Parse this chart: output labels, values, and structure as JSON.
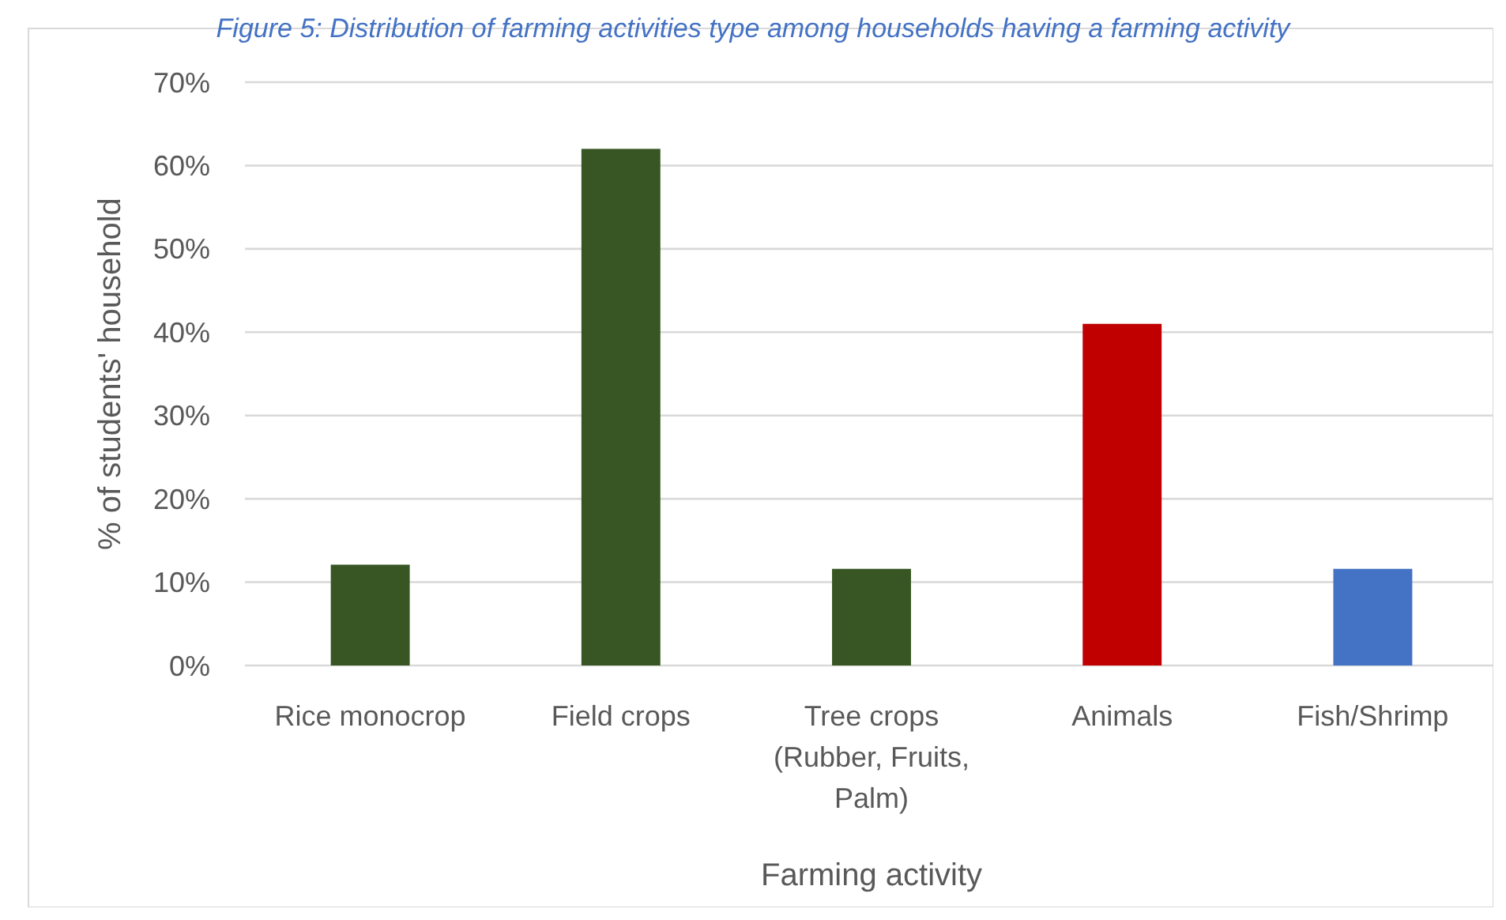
{
  "chart_data": {
    "type": "bar",
    "title": "Figure 5: Distribution of farming activities type among households having a farming activity",
    "categories": [
      "Rice monocrop",
      "Field crops",
      "Tree crops (Rubber, Fruits, Palm)",
      "Animals",
      "Fish/Shrimp"
    ],
    "values": [
      12.1,
      62.0,
      11.6,
      41.0,
      11.6
    ],
    "colors": [
      "#375623",
      "#375623",
      "#375623",
      "#c00000",
      "#4472c4"
    ],
    "xlabel": "Farming activity",
    "ylabel": "% of students' household",
    "ylim": [
      0,
      70
    ],
    "yticks": [
      {
        "value": 0,
        "label": "0%"
      },
      {
        "value": 10,
        "label": "10%"
      },
      {
        "value": 20,
        "label": "20%"
      },
      {
        "value": 30,
        "label": "30%"
      },
      {
        "value": 40,
        "label": "40%"
      },
      {
        "value": 50,
        "label": "50%"
      },
      {
        "value": 60,
        "label": "60%"
      },
      {
        "value": 70,
        "label": "70%"
      }
    ],
    "grid": "y"
  }
}
